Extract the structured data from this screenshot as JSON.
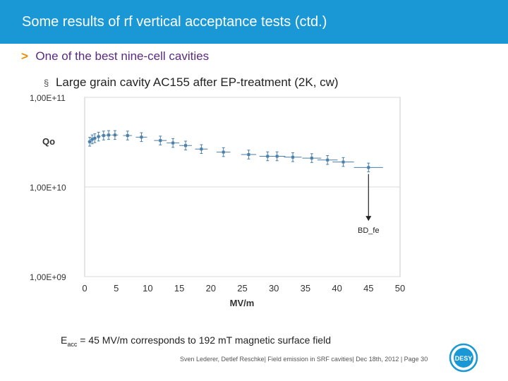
{
  "header": {
    "title": "Some results of rf vertical acceptance tests (ctd.)"
  },
  "subtitle": {
    "arrow": ">",
    "text": "One of the best nine-cell cavities"
  },
  "bullet": {
    "mark": "§",
    "text": "Large grain cavity AC155 after EP-treatment (2K, cw)"
  },
  "note": {
    "prefix": "E",
    "sub": "acc",
    "text": " = 45 MV/m corresponds to 192 mT magnetic surface field"
  },
  "footer": {
    "text": "Sven Lederer, Detlef Reschke| Field emission in SRF cavities| Dec 18th, 2012 | Page 30"
  },
  "logo": {
    "text": "DESY"
  },
  "colors": {
    "header": "#1a98d5",
    "subtitle": "#5a2a82",
    "arrow": "#f18a00",
    "marker": "#4a7fa8"
  },
  "chart_data": {
    "type": "scatter",
    "xlabel": "MV/m",
    "ylabel": "Qo",
    "xlim": [
      0,
      50
    ],
    "ylim": [
      1000000000.0,
      100000000000.0
    ],
    "yscale": "log",
    "xticks": [
      0,
      5,
      10,
      15,
      20,
      25,
      30,
      35,
      40,
      45,
      50
    ],
    "yticks": [
      1000000000.0,
      10000000000.0,
      100000000000.0
    ],
    "ytick_labels": [
      "1,00E+09",
      "1,00E+10",
      "1,00E+11"
    ],
    "grid": "horizontal",
    "annotations": [
      {
        "text": "BD_fe",
        "x": 45,
        "y": 3300000000.0
      }
    ],
    "series": [
      {
        "x": [
          0.8,
          1.2,
          1.6,
          2.2,
          3.0,
          3.8,
          4.8,
          6.8,
          9.0,
          12.0,
          14.0,
          16.0,
          18.5,
          22.0,
          26.0,
          29.0,
          30.5,
          33.0,
          36.0,
          38.5,
          41.0,
          45.0
        ],
        "y": [
          32000000000.0,
          34000000000.0,
          35000000000.0,
          36500000000.0,
          37500000000.0,
          38000000000.0,
          38000000000.0,
          37500000000.0,
          36000000000.0,
          33000000000.0,
          31000000000.0,
          29000000000.0,
          26500000000.0,
          24500000000.0,
          23000000000.0,
          22000000000.0,
          22000000000.0,
          21500000000.0,
          21000000000.0,
          20000000000.0,
          19000000000.0,
          16500000000.0
        ],
        "xerr": [
          0.3,
          0.3,
          0.3,
          0.3,
          0.4,
          0.4,
          0.5,
          0.7,
          0.9,
          1.0,
          1.0,
          1.0,
          1.0,
          1.1,
          1.2,
          1.3,
          1.3,
          1.4,
          1.5,
          1.6,
          1.7,
          2.3
        ],
        "yerr_factor": 1.12
      }
    ]
  }
}
